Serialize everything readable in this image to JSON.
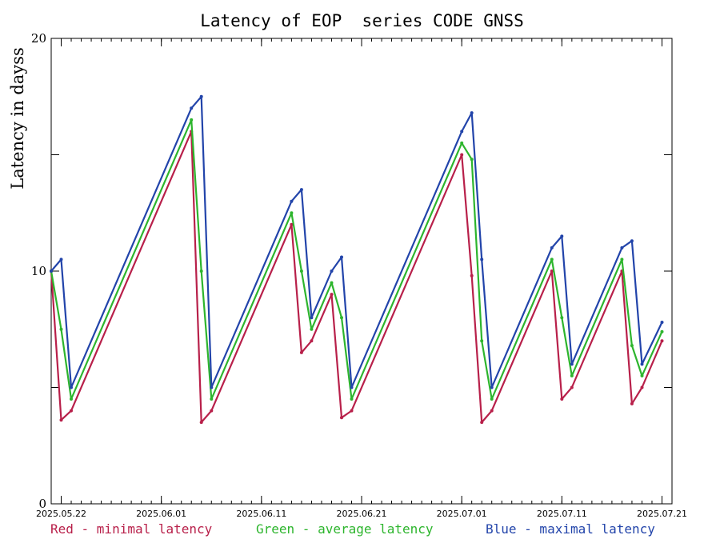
{
  "chart_data": {
    "type": "line",
    "title": "Latency of EOP  series CODE GNSS",
    "ylabel": "Latency in dayss",
    "xlabel": "",
    "ylim": [
      0,
      20
    ],
    "y_ticks": [
      "0",
      "10",
      "20"
    ],
    "x_range_days": [
      "2025.05.21",
      "2025.07.22"
    ],
    "x_ticks": [
      "2025.05.22",
      "2025.06.01",
      "2025.06.11",
      "2025.06.21",
      "2025.07.01",
      "2025.07.11",
      "2025.07.21"
    ],
    "grid": false,
    "colors": {
      "red": "#b8204a",
      "green": "#2db52d",
      "blue": "#2244aa"
    },
    "series": [
      {
        "name": "Red - minimal latency",
        "color": "#b8204a",
        "x": [
          "2025.05.21",
          "2025.05.22",
          "2025.05.23",
          "2025.06.04",
          "2025.06.05",
          "2025.06.06",
          "2025.06.14",
          "2025.06.15",
          "2025.06.16",
          "2025.06.18",
          "2025.06.19",
          "2025.06.20",
          "2025.07.01",
          "2025.07.02",
          "2025.07.03",
          "2025.07.04",
          "2025.07.10",
          "2025.07.11",
          "2025.07.12",
          "2025.07.17",
          "2025.07.18",
          "2025.07.19",
          "2025.07.21"
        ],
        "values": [
          10,
          3.6,
          4,
          16,
          3.5,
          4,
          12,
          6.5,
          7,
          9,
          3.7,
          4,
          15,
          9.8,
          3.5,
          4,
          10,
          4.5,
          5,
          10,
          4.3,
          5,
          7
        ]
      },
      {
        "name": "Green - average latency",
        "color": "#2db52d",
        "x": [
          "2025.05.21",
          "2025.05.22",
          "2025.05.23",
          "2025.06.04",
          "2025.06.05",
          "2025.06.06",
          "2025.06.14",
          "2025.06.15",
          "2025.06.16",
          "2025.06.18",
          "2025.06.19",
          "2025.06.20",
          "2025.07.01",
          "2025.07.02",
          "2025.07.03",
          "2025.07.04",
          "2025.07.10",
          "2025.07.11",
          "2025.07.12",
          "2025.07.17",
          "2025.07.18",
          "2025.07.19",
          "2025.07.21"
        ],
        "values": [
          10,
          7.5,
          4.5,
          16.5,
          10,
          4.5,
          12.5,
          10,
          7.5,
          9.5,
          8,
          4.5,
          15.5,
          14.8,
          7,
          4.5,
          10.5,
          8,
          5.5,
          10.5,
          6.8,
          5.5,
          7.4
        ]
      },
      {
        "name": "Blue - maximal latency",
        "color": "#2244aa",
        "x": [
          "2025.05.21",
          "2025.05.22",
          "2025.05.23",
          "2025.06.04",
          "2025.06.05",
          "2025.06.06",
          "2025.06.14",
          "2025.06.15",
          "2025.06.16",
          "2025.06.18",
          "2025.06.19",
          "2025.06.20",
          "2025.07.01",
          "2025.07.02",
          "2025.07.03",
          "2025.07.04",
          "2025.07.10",
          "2025.07.11",
          "2025.07.12",
          "2025.07.17",
          "2025.07.18",
          "2025.07.19",
          "2025.07.21"
        ],
        "values": [
          10,
          10.5,
          5,
          17,
          17.5,
          5,
          13,
          13.5,
          8,
          10,
          10.6,
          5,
          16,
          16.8,
          10.5,
          5,
          11,
          11.5,
          6,
          11,
          11.3,
          6,
          7.8
        ]
      }
    ],
    "legend": [
      {
        "label": "Red - minimal latency",
        "color": "#b8204a"
      },
      {
        "label": "Green - average latency",
        "color": "#2db52d"
      },
      {
        "label": "Blue - maximal latency",
        "color": "#2244aa"
      }
    ]
  }
}
